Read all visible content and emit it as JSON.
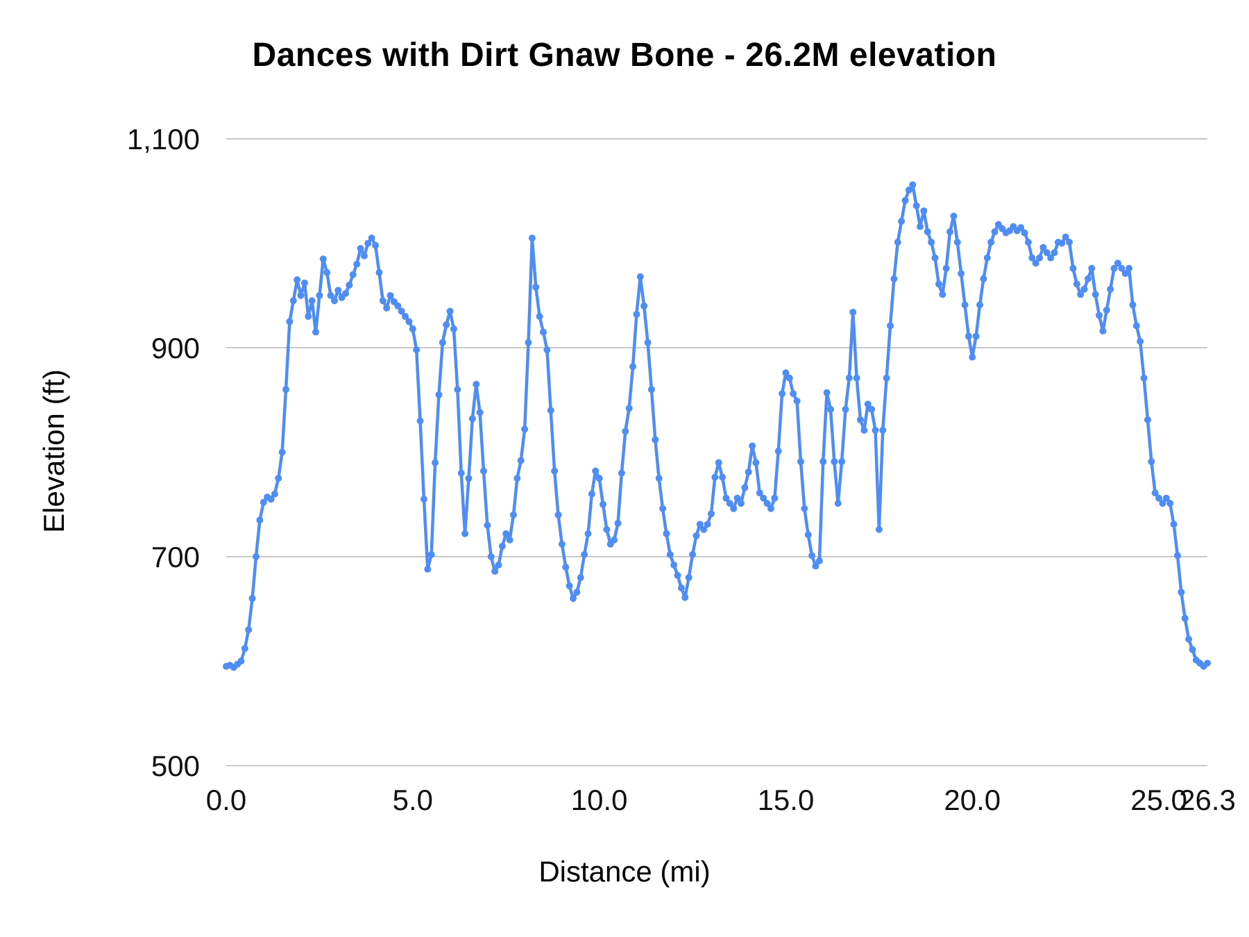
{
  "chart_data": {
    "type": "line",
    "title": "Dances with Dirt Gnaw Bone - 26.2M elevation",
    "xlabel": "Distance (mi)",
    "ylabel": "Elevation (ft)",
    "xlim": [
      0,
      26.3
    ],
    "ylim": [
      500,
      1100
    ],
    "grid": "horizontal-only",
    "legend_position": "none",
    "line_color": "#4f8df5",
    "grid_color": "#c9c9c9",
    "tick_color": "#111111",
    "marker": "circle",
    "x_ticks": [
      {
        "v": 0,
        "label": "0.0"
      },
      {
        "v": 5,
        "label": "5.0"
      },
      {
        "v": 10,
        "label": "10.0"
      },
      {
        "v": 15,
        "label": "15.0"
      },
      {
        "v": 20,
        "label": "20.0"
      },
      {
        "v": 25,
        "label": "25.0"
      },
      {
        "v": 26.3,
        "label": "26.3"
      }
    ],
    "y_ticks": [
      {
        "v": 500,
        "label": "500"
      },
      {
        "v": 700,
        "label": "700"
      },
      {
        "v": 900,
        "label": "900"
      },
      {
        "v": 1100,
        "label": "1,100"
      }
    ],
    "series": [
      {
        "name": "Elevation",
        "x": [
          0,
          0.1,
          0.2,
          0.3,
          0.4,
          0.5,
          0.6,
          0.7,
          0.8,
          0.9,
          1,
          1.1,
          1.2,
          1.3,
          1.4,
          1.5,
          1.6,
          1.7,
          1.8,
          1.9,
          2,
          2.1,
          2.2,
          2.3,
          2.4,
          2.5,
          2.6,
          2.7,
          2.8,
          2.9,
          3,
          3.1,
          3.2,
          3.3,
          3.4,
          3.5,
          3.6,
          3.7,
          3.8,
          3.9,
          4,
          4.1,
          4.2,
          4.3,
          4.4,
          4.5,
          4.6,
          4.7,
          4.8,
          4.9,
          5,
          5.1,
          5.2,
          5.3,
          5.4,
          5.5,
          5.6,
          5.7,
          5.8,
          5.9,
          6,
          6.1,
          6.2,
          6.3,
          6.4,
          6.5,
          6.6,
          6.7,
          6.8,
          6.9,
          7,
          7.1,
          7.2,
          7.3,
          7.4,
          7.5,
          7.6,
          7.7,
          7.8,
          7.9,
          8,
          8.1,
          8.2,
          8.3,
          8.4,
          8.5,
          8.6,
          8.7,
          8.8,
          8.9,
          9,
          9.1,
          9.2,
          9.3,
          9.4,
          9.5,
          9.6,
          9.7,
          9.8,
          9.9,
          10,
          10.1,
          10.2,
          10.3,
          10.4,
          10.5,
          10.6,
          10.7,
          10.8,
          10.9,
          11,
          11.1,
          11.2,
          11.3,
          11.4,
          11.5,
          11.6,
          11.7,
          11.8,
          11.9,
          12,
          12.1,
          12.2,
          12.3,
          12.4,
          12.5,
          12.6,
          12.7,
          12.8,
          12.9,
          13,
          13.1,
          13.2,
          13.3,
          13.4,
          13.5,
          13.6,
          13.7,
          13.8,
          13.9,
          14,
          14.1,
          14.2,
          14.3,
          14.4,
          14.5,
          14.6,
          14.7,
          14.8,
          14.9,
          15,
          15.1,
          15.2,
          15.3,
          15.4,
          15.5,
          15.6,
          15.7,
          15.8,
          15.9,
          16,
          16.1,
          16.2,
          16.3,
          16.4,
          16.5,
          16.6,
          16.7,
          16.8,
          16.9,
          17,
          17.1,
          17.2,
          17.3,
          17.4,
          17.5,
          17.6,
          17.7,
          17.8,
          17.9,
          18,
          18.1,
          18.2,
          18.3,
          18.4,
          18.5,
          18.6,
          18.7,
          18.8,
          18.9,
          19,
          19.1,
          19.2,
          19.3,
          19.4,
          19.5,
          19.6,
          19.7,
          19.8,
          19.9,
          20,
          20.1,
          20.2,
          20.3,
          20.4,
          20.5,
          20.6,
          20.7,
          20.8,
          20.9,
          21,
          21.1,
          21.2,
          21.3,
          21.4,
          21.5,
          21.6,
          21.7,
          21.8,
          21.9,
          22,
          22.1,
          22.2,
          22.3,
          22.4,
          22.5,
          22.6,
          22.7,
          22.8,
          22.9,
          23,
          23.1,
          23.2,
          23.3,
          23.4,
          23.5,
          23.6,
          23.7,
          23.8,
          23.9,
          24,
          24.1,
          24.2,
          24.3,
          24.4,
          24.5,
          24.6,
          24.7,
          24.8,
          24.9,
          25,
          25.1,
          25.2,
          25.3,
          25.4,
          25.5,
          25.6,
          25.7,
          25.8,
          25.9,
          26,
          26.1,
          26.2,
          26.3
        ],
        "y": [
          595,
          596,
          594,
          597,
          600,
          612,
          630,
          660,
          700,
          735,
          752,
          757,
          755,
          760,
          775,
          800,
          860,
          925,
          945,
          965,
          950,
          962,
          930,
          945,
          915,
          950,
          985,
          972,
          950,
          945,
          955,
          948,
          952,
          960,
          970,
          980,
          995,
          988,
          1000,
          1005,
          998,
          972,
          945,
          938,
          950,
          944,
          940,
          935,
          930,
          925,
          918,
          898,
          830,
          755,
          688,
          702,
          790,
          855,
          905,
          922,
          935,
          918,
          860,
          780,
          722,
          775,
          832,
          865,
          838,
          782,
          730,
          700,
          686,
          692,
          710,
          722,
          716,
          740,
          775,
          792,
          822,
          905,
          1005,
          958,
          930,
          915,
          898,
          840,
          782,
          740,
          712,
          690,
          672,
          660,
          666,
          680,
          702,
          722,
          760,
          782,
          775,
          750,
          726,
          712,
          716,
          732,
          780,
          820,
          842,
          882,
          932,
          968,
          940,
          905,
          860,
          812,
          775,
          746,
          722,
          702,
          692,
          682,
          670,
          661,
          680,
          702,
          720,
          731,
          726,
          731,
          741,
          776,
          790,
          776,
          756,
          751,
          746,
          756,
          751,
          766,
          781,
          806,
          790,
          761,
          756,
          751,
          746,
          756,
          801,
          856,
          876,
          871,
          856,
          849,
          791,
          746,
          721,
          701,
          691,
          696,
          791,
          857,
          841,
          791,
          751,
          791,
          841,
          871,
          934,
          871,
          831,
          821,
          846,
          841,
          821,
          726,
          821,
          871,
          921,
          966,
          1001,
          1021,
          1041,
          1051,
          1056,
          1036,
          1016,
          1031,
          1011,
          1001,
          986,
          961,
          951,
          976,
          1011,
          1026,
          1001,
          971,
          941,
          911,
          891,
          911,
          941,
          966,
          986,
          1001,
          1011,
          1018,
          1014,
          1010,
          1012,
          1016,
          1012,
          1015,
          1010,
          1001,
          986,
          981,
          986,
          996,
          991,
          986,
          991,
          1001,
          1000,
          1006,
          1001,
          976,
          961,
          951,
          956,
          966,
          976,
          951,
          931,
          916,
          936,
          956,
          976,
          981,
          976,
          971,
          976,
          941,
          921,
          906,
          871,
          831,
          791,
          761,
          756,
          751,
          756,
          751,
          731,
          701,
          666,
          641,
          621,
          611,
          601,
          598,
          595,
          598
        ]
      }
    ]
  }
}
